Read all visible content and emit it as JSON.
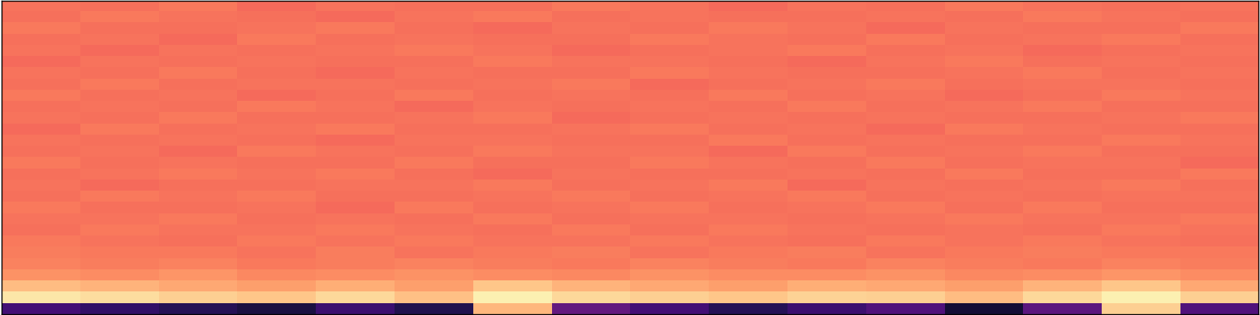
{
  "chart_data": {
    "type": "heatmap",
    "tick_labels": false,
    "color": "magma",
    "color_range": [
      0,
      1
    ],
    "cells": [
      [
        0.71,
        0.7,
        0.72,
        0.69,
        0.71,
        0.7,
        0.7,
        0.72,
        0.71,
        0.69,
        0.71,
        0.7,
        0.72,
        0.71,
        0.7,
        0.71
      ],
      [
        0.7,
        0.72,
        0.71,
        0.7,
        0.69,
        0.71,
        0.72,
        0.7,
        0.71,
        0.7,
        0.7,
        0.71,
        0.7,
        0.72,
        0.71,
        0.7
      ],
      [
        0.72,
        0.7,
        0.7,
        0.71,
        0.72,
        0.7,
        0.69,
        0.71,
        0.7,
        0.72,
        0.71,
        0.69,
        0.71,
        0.7,
        0.7,
        0.72
      ],
      [
        0.7,
        0.71,
        0.69,
        0.72,
        0.7,
        0.71,
        0.7,
        0.7,
        0.72,
        0.71,
        0.7,
        0.72,
        0.7,
        0.71,
        0.72,
        0.7
      ],
      [
        0.71,
        0.69,
        0.71,
        0.7,
        0.71,
        0.72,
        0.71,
        0.69,
        0.7,
        0.71,
        0.72,
        0.7,
        0.71,
        0.69,
        0.7,
        0.71
      ],
      [
        0.69,
        0.71,
        0.7,
        0.71,
        0.7,
        0.7,
        0.72,
        0.71,
        0.71,
        0.7,
        0.69,
        0.71,
        0.72,
        0.7,
        0.71,
        0.7
      ],
      [
        0.71,
        0.7,
        0.72,
        0.7,
        0.69,
        0.71,
        0.7,
        0.7,
        0.72,
        0.71,
        0.7,
        0.7,
        0.71,
        0.72,
        0.7,
        0.71
      ],
      [
        0.7,
        0.72,
        0.7,
        0.71,
        0.71,
        0.7,
        0.71,
        0.72,
        0.69,
        0.7,
        0.71,
        0.72,
        0.7,
        0.71,
        0.71,
        0.7
      ],
      [
        0.72,
        0.7,
        0.71,
        0.69,
        0.7,
        0.72,
        0.7,
        0.71,
        0.7,
        0.72,
        0.7,
        0.71,
        0.69,
        0.7,
        0.72,
        0.71
      ],
      [
        0.7,
        0.71,
        0.7,
        0.72,
        0.71,
        0.69,
        0.71,
        0.7,
        0.71,
        0.7,
        0.72,
        0.7,
        0.71,
        0.72,
        0.7,
        0.7
      ],
      [
        0.71,
        0.7,
        0.72,
        0.7,
        0.7,
        0.71,
        0.72,
        0.69,
        0.7,
        0.71,
        0.7,
        0.71,
        0.7,
        0.7,
        0.71,
        0.72
      ],
      [
        0.69,
        0.72,
        0.7,
        0.71,
        0.72,
        0.7,
        0.7,
        0.71,
        0.72,
        0.7,
        0.71,
        0.69,
        0.72,
        0.71,
        0.7,
        0.7
      ],
      [
        0.71,
        0.7,
        0.71,
        0.7,
        0.69,
        0.71,
        0.71,
        0.7,
        0.7,
        0.72,
        0.7,
        0.71,
        0.7,
        0.7,
        0.72,
        0.71
      ],
      [
        0.7,
        0.71,
        0.69,
        0.72,
        0.71,
        0.7,
        0.72,
        0.71,
        0.71,
        0.69,
        0.72,
        0.7,
        0.71,
        0.72,
        0.7,
        0.7
      ],
      [
        0.72,
        0.7,
        0.71,
        0.7,
        0.7,
        0.72,
        0.7,
        0.7,
        0.72,
        0.71,
        0.7,
        0.72,
        0.7,
        0.71,
        0.71,
        0.69
      ],
      [
        0.7,
        0.71,
        0.72,
        0.71,
        0.72,
        0.7,
        0.69,
        0.71,
        0.7,
        0.7,
        0.71,
        0.7,
        0.72,
        0.7,
        0.7,
        0.72
      ],
      [
        0.71,
        0.69,
        0.7,
        0.7,
        0.71,
        0.71,
        0.72,
        0.7,
        0.71,
        0.72,
        0.69,
        0.71,
        0.7,
        0.71,
        0.72,
        0.7
      ],
      [
        0.7,
        0.72,
        0.71,
        0.72,
        0.7,
        0.7,
        0.71,
        0.72,
        0.7,
        0.71,
        0.72,
        0.7,
        0.71,
        0.7,
        0.71,
        0.71
      ],
      [
        0.72,
        0.7,
        0.7,
        0.71,
        0.69,
        0.72,
        0.7,
        0.71,
        0.72,
        0.7,
        0.71,
        0.72,
        0.7,
        0.72,
        0.7,
        0.7
      ],
      [
        0.71,
        0.71,
        0.72,
        0.7,
        0.71,
        0.7,
        0.72,
        0.7,
        0.71,
        0.71,
        0.7,
        0.71,
        0.72,
        0.71,
        0.71,
        0.72
      ],
      [
        0.7,
        0.72,
        0.71,
        0.71,
        0.72,
        0.71,
        0.7,
        0.72,
        0.7,
        0.72,
        0.71,
        0.7,
        0.71,
        0.7,
        0.72,
        0.71
      ],
      [
        0.72,
        0.71,
        0.7,
        0.72,
        0.71,
        0.72,
        0.71,
        0.71,
        0.72,
        0.71,
        0.7,
        0.72,
        0.71,
        0.72,
        0.71,
        0.7
      ],
      [
        0.73,
        0.72,
        0.72,
        0.71,
        0.73,
        0.71,
        0.72,
        0.73,
        0.71,
        0.72,
        0.73,
        0.71,
        0.72,
        0.73,
        0.72,
        0.72
      ],
      [
        0.74,
        0.73,
        0.74,
        0.72,
        0.73,
        0.74,
        0.73,
        0.72,
        0.74,
        0.73,
        0.72,
        0.74,
        0.73,
        0.72,
        0.74,
        0.73
      ],
      [
        0.77,
        0.76,
        0.78,
        0.75,
        0.76,
        0.77,
        0.76,
        0.75,
        0.77,
        0.76,
        0.76,
        0.77,
        0.75,
        0.76,
        0.78,
        0.76
      ],
      [
        0.86,
        0.84,
        0.82,
        0.8,
        0.83,
        0.8,
        0.88,
        0.84,
        0.82,
        0.8,
        0.83,
        0.82,
        0.8,
        0.84,
        0.88,
        0.82
      ],
      [
        0.95,
        0.93,
        0.9,
        0.88,
        0.92,
        0.87,
        0.97,
        0.92,
        0.9,
        0.88,
        0.91,
        0.9,
        0.86,
        0.92,
        0.97,
        0.9
      ],
      [
        0.22,
        0.18,
        0.15,
        0.12,
        0.2,
        0.14,
        0.85,
        0.3,
        0.22,
        0.15,
        0.2,
        0.25,
        0.1,
        0.28,
        0.9,
        0.25
      ]
    ]
  }
}
